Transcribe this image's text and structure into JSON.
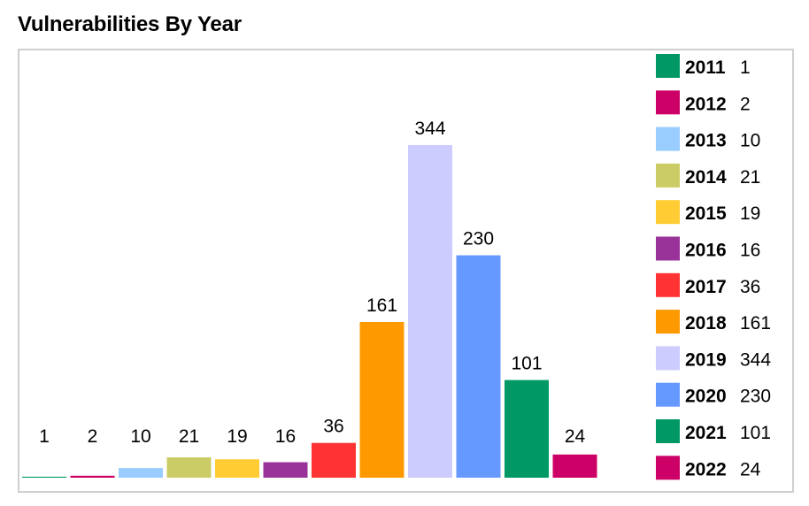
{
  "title": "Vulnerabilities By Year",
  "chart_data": {
    "type": "bar",
    "title": "Vulnerabilities By Year",
    "xlabel": "",
    "ylabel": "",
    "categories": [
      "2011",
      "2012",
      "2013",
      "2014",
      "2015",
      "2016",
      "2017",
      "2018",
      "2019",
      "2020",
      "2021",
      "2022"
    ],
    "values": [
      1,
      2,
      10,
      21,
      19,
      16,
      36,
      161,
      344,
      230,
      101,
      24
    ],
    "colors": [
      "#009966",
      "#cc0066",
      "#99ccff",
      "#cccc66",
      "#ffcc33",
      "#993399",
      "#ff3333",
      "#ff9900",
      "#ccccff",
      "#6699ff",
      "#009966",
      "#cc0066"
    ],
    "ylim": [
      0,
      344
    ],
    "grid": false,
    "legend_position": "right",
    "data_labels": true
  }
}
